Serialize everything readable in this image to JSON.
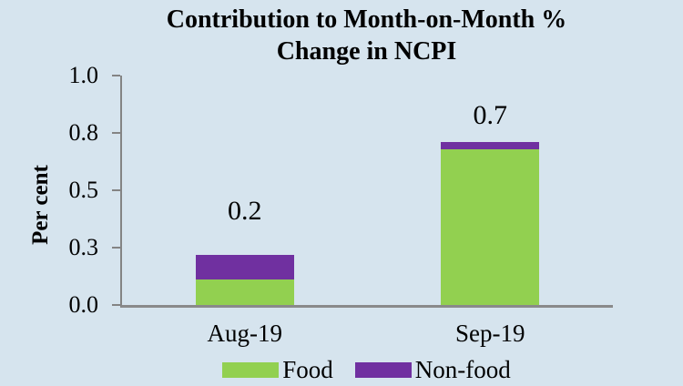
{
  "chart_data": {
    "type": "bar",
    "stacked": true,
    "title": "Contribution to Month-on-Month % Change in NCPI",
    "title_lines": [
      "Contribution to Month-on-Month %",
      "Change in NCPI"
    ],
    "ylabel": "Per cent",
    "xlabel": "",
    "ylim": [
      0,
      1.0
    ],
    "yticks": [
      {
        "value": 1.0,
        "label": "1.0"
      },
      {
        "value": 0.75,
        "label": "0.8"
      },
      {
        "value": 0.5,
        "label": "0.5"
      },
      {
        "value": 0.25,
        "label": "0.3"
      },
      {
        "value": 0.0,
        "label": "0.0"
      }
    ],
    "categories": [
      "Aug-19",
      "Sep-19"
    ],
    "series": [
      {
        "name": "Food",
        "color": "#92d050",
        "values": [
          0.11,
          0.68
        ]
      },
      {
        "name": "Non-food",
        "color": "#7030a0",
        "values": [
          0.11,
          0.03
        ]
      }
    ],
    "total_labels": [
      "0.2",
      "0.7"
    ],
    "legend_position": "bottom",
    "grid": false
  },
  "colors": {
    "background": "#d6e4ee",
    "axis": "#848484",
    "text": "#000000"
  }
}
